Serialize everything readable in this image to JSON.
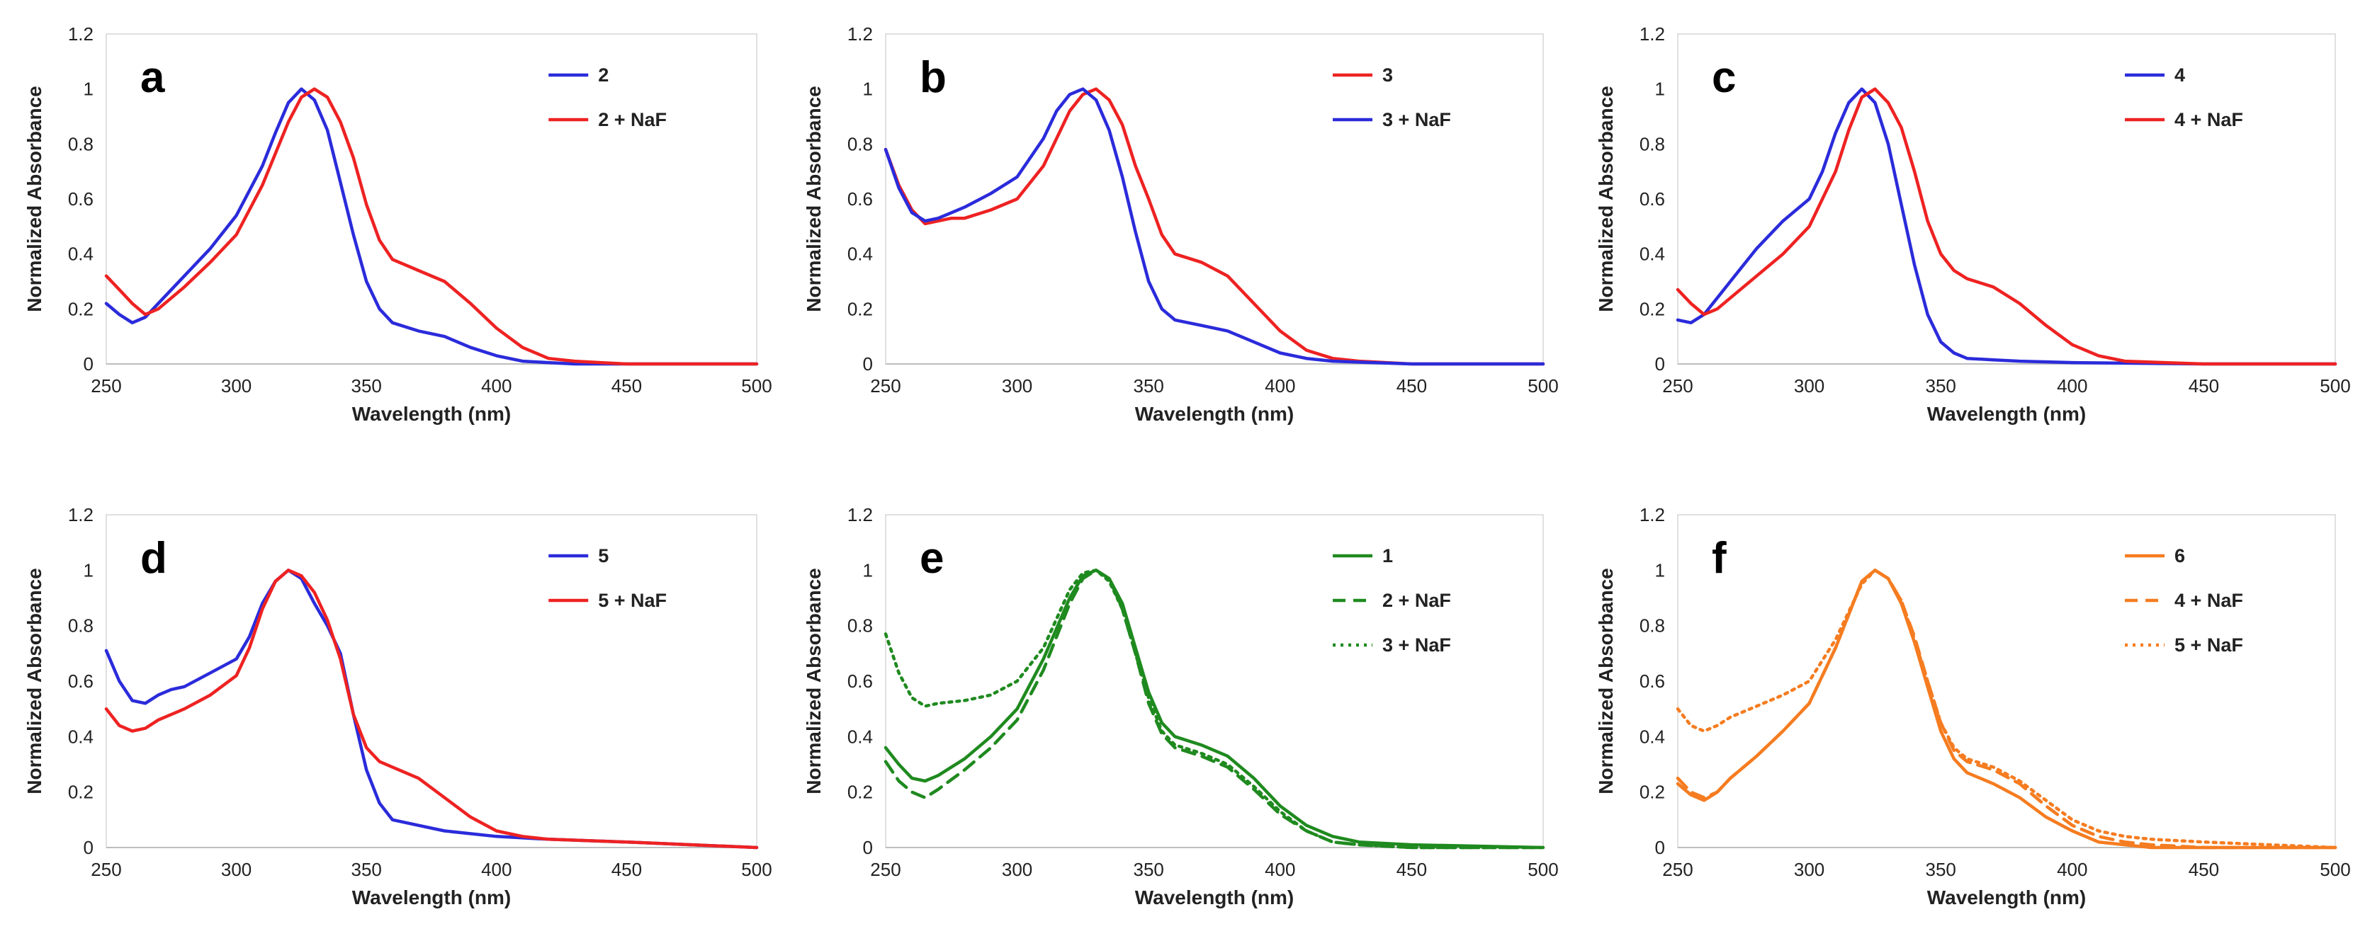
{
  "chart_data": [
    {
      "type": "line",
      "panel_label": "a",
      "xlabel": "Wavelength (nm)",
      "ylabel": "Normalized Absorbance",
      "xlim": [
        250,
        500
      ],
      "ylim": [
        0,
        1.2
      ],
      "xticks": [
        250,
        300,
        350,
        400,
        450,
        500
      ],
      "yticks": [
        0,
        0.2,
        0.4,
        0.6,
        0.8,
        1,
        1.2
      ],
      "grid": false,
      "legend": "top-right",
      "series": [
        {
          "name": "2",
          "color": "#2b2bdb",
          "style": "solid",
          "x": [
            250,
            255,
            260,
            265,
            270,
            280,
            290,
            300,
            310,
            315,
            320,
            325,
            330,
            335,
            340,
            345,
            350,
            355,
            360,
            370,
            380,
            390,
            400,
            410,
            420,
            430,
            450,
            500
          ],
          "y": [
            0.22,
            0.18,
            0.15,
            0.17,
            0.22,
            0.32,
            0.42,
            0.54,
            0.72,
            0.84,
            0.95,
            1.0,
            0.96,
            0.85,
            0.66,
            0.47,
            0.3,
            0.2,
            0.15,
            0.12,
            0.1,
            0.06,
            0.03,
            0.01,
            0.005,
            0,
            0,
            0
          ]
        },
        {
          "name": "2 + NaF",
          "color": "#ee2222",
          "style": "solid",
          "x": [
            250,
            255,
            260,
            265,
            270,
            280,
            290,
            300,
            310,
            320,
            325,
            330,
            335,
            340,
            345,
            350,
            355,
            360,
            370,
            380,
            390,
            400,
            410,
            420,
            430,
            440,
            450,
            500
          ],
          "y": [
            0.32,
            0.27,
            0.22,
            0.18,
            0.2,
            0.28,
            0.37,
            0.47,
            0.65,
            0.88,
            0.97,
            1.0,
            0.97,
            0.88,
            0.75,
            0.58,
            0.45,
            0.38,
            0.34,
            0.3,
            0.22,
            0.13,
            0.06,
            0.02,
            0.01,
            0.005,
            0,
            0
          ]
        }
      ]
    },
    {
      "type": "line",
      "panel_label": "b",
      "xlabel": "Wavelength (nm)",
      "ylabel": "Normalized Absorbance",
      "xlim": [
        250,
        500
      ],
      "ylim": [
        0,
        1.2
      ],
      "xticks": [
        250,
        300,
        350,
        400,
        450,
        500
      ],
      "yticks": [
        0,
        0.2,
        0.4,
        0.6,
        0.8,
        1,
        1.2
      ],
      "grid": false,
      "legend": "top-right",
      "series": [
        {
          "name": "3",
          "color": "#ee2222",
          "style": "solid",
          "x": [
            250,
            255,
            260,
            265,
            270,
            275,
            280,
            290,
            300,
            310,
            320,
            325,
            330,
            335,
            340,
            345,
            350,
            355,
            360,
            370,
            380,
            390,
            400,
            410,
            420,
            430,
            450,
            500
          ],
          "y": [
            0.78,
            0.65,
            0.56,
            0.51,
            0.52,
            0.53,
            0.53,
            0.56,
            0.6,
            0.72,
            0.92,
            0.98,
            1.0,
            0.96,
            0.87,
            0.72,
            0.6,
            0.47,
            0.4,
            0.37,
            0.32,
            0.22,
            0.12,
            0.05,
            0.02,
            0.01,
            0,
            0
          ]
        },
        {
          "name": "3 + NaF",
          "color": "#2b2bdb",
          "style": "solid",
          "x": [
            250,
            255,
            260,
            265,
            270,
            275,
            280,
            290,
            300,
            310,
            315,
            320,
            325,
            330,
            335,
            340,
            345,
            350,
            355,
            360,
            370,
            380,
            390,
            400,
            410,
            420,
            450,
            500
          ],
          "y": [
            0.78,
            0.64,
            0.55,
            0.52,
            0.53,
            0.55,
            0.57,
            0.62,
            0.68,
            0.82,
            0.92,
            0.98,
            1.0,
            0.96,
            0.85,
            0.68,
            0.48,
            0.3,
            0.2,
            0.16,
            0.14,
            0.12,
            0.08,
            0.04,
            0.02,
            0.01,
            0,
            0
          ]
        }
      ]
    },
    {
      "type": "line",
      "panel_label": "c",
      "xlabel": "Wavelength (nm)",
      "ylabel": "Normalized Absorbance",
      "xlim": [
        250,
        500
      ],
      "ylim": [
        0,
        1.2
      ],
      "xticks": [
        250,
        300,
        350,
        400,
        450,
        500
      ],
      "yticks": [
        0,
        0.2,
        0.4,
        0.6,
        0.8,
        1,
        1.2
      ],
      "grid": false,
      "legend": "top-right",
      "series": [
        {
          "name": "4",
          "color": "#2b2bdb",
          "style": "solid",
          "x": [
            250,
            255,
            260,
            265,
            270,
            280,
            290,
            300,
            305,
            310,
            315,
            320,
            325,
            330,
            335,
            340,
            345,
            350,
            355,
            360,
            370,
            380,
            400,
            450,
            500
          ],
          "y": [
            0.16,
            0.15,
            0.18,
            0.24,
            0.3,
            0.42,
            0.52,
            0.6,
            0.7,
            0.84,
            0.95,
            1.0,
            0.95,
            0.8,
            0.58,
            0.36,
            0.18,
            0.08,
            0.04,
            0.02,
            0.015,
            0.01,
            0.005,
            0,
            0
          ]
        },
        {
          "name": "4 + NaF",
          "color": "#ee2222",
          "style": "solid",
          "x": [
            250,
            255,
            260,
            265,
            270,
            280,
            290,
            300,
            310,
            315,
            320,
            325,
            330,
            335,
            340,
            345,
            350,
            355,
            360,
            370,
            380,
            390,
            400,
            410,
            420,
            450,
            500
          ],
          "y": [
            0.27,
            0.22,
            0.18,
            0.2,
            0.24,
            0.32,
            0.4,
            0.5,
            0.7,
            0.85,
            0.97,
            1.0,
            0.95,
            0.86,
            0.7,
            0.52,
            0.4,
            0.34,
            0.31,
            0.28,
            0.22,
            0.14,
            0.07,
            0.03,
            0.01,
            0,
            0
          ]
        }
      ]
    },
    {
      "type": "line",
      "panel_label": "d",
      "xlabel": "Wavelength (nm)",
      "ylabel": "Normalized Absorbance",
      "xlim": [
        250,
        500
      ],
      "ylim": [
        0,
        1.2
      ],
      "xticks": [
        250,
        300,
        350,
        400,
        450,
        500
      ],
      "yticks": [
        0,
        0.2,
        0.4,
        0.6,
        0.8,
        1,
        1.2
      ],
      "grid": false,
      "legend": "top-right",
      "series": [
        {
          "name": "5",
          "color": "#2b2bdb",
          "style": "solid",
          "x": [
            250,
            255,
            260,
            265,
            270,
            275,
            280,
            290,
            300,
            305,
            310,
            315,
            320,
            325,
            330,
            335,
            340,
            345,
            350,
            355,
            360,
            370,
            380,
            400,
            420,
            450,
            500
          ],
          "y": [
            0.71,
            0.6,
            0.53,
            0.52,
            0.55,
            0.57,
            0.58,
            0.63,
            0.68,
            0.76,
            0.88,
            0.96,
            1.0,
            0.97,
            0.88,
            0.8,
            0.7,
            0.48,
            0.28,
            0.16,
            0.1,
            0.08,
            0.06,
            0.04,
            0.03,
            0.02,
            0
          ]
        },
        {
          "name": "5 + NaF",
          "color": "#ee2222",
          "style": "solid",
          "x": [
            250,
            255,
            260,
            265,
            270,
            280,
            290,
            300,
            305,
            310,
            315,
            320,
            325,
            330,
            335,
            340,
            345,
            350,
            355,
            360,
            370,
            380,
            390,
            400,
            410,
            420,
            450,
            500
          ],
          "y": [
            0.5,
            0.44,
            0.42,
            0.43,
            0.46,
            0.5,
            0.55,
            0.62,
            0.72,
            0.86,
            0.96,
            1.0,
            0.98,
            0.92,
            0.82,
            0.68,
            0.48,
            0.36,
            0.31,
            0.29,
            0.25,
            0.18,
            0.11,
            0.06,
            0.04,
            0.03,
            0.02,
            0
          ]
        }
      ]
    },
    {
      "type": "line",
      "panel_label": "e",
      "xlabel": "Wavelength (nm)",
      "ylabel": "Normalized Absorbance",
      "xlim": [
        250,
        500
      ],
      "ylim": [
        0,
        1.2
      ],
      "xticks": [
        250,
        300,
        350,
        400,
        450,
        500
      ],
      "yticks": [
        0,
        0.2,
        0.4,
        0.6,
        0.8,
        1,
        1.2
      ],
      "grid": false,
      "legend": "top-right",
      "series": [
        {
          "name": "1",
          "color": "#1f8a1f",
          "style": "solid",
          "x": [
            250,
            255,
            260,
            265,
            270,
            280,
            290,
            300,
            310,
            320,
            325,
            330,
            335,
            340,
            345,
            350,
            355,
            360,
            370,
            380,
            390,
            400,
            410,
            420,
            430,
            450,
            500
          ],
          "y": [
            0.36,
            0.3,
            0.25,
            0.24,
            0.26,
            0.32,
            0.4,
            0.5,
            0.68,
            0.9,
            0.98,
            1.0,
            0.97,
            0.88,
            0.72,
            0.56,
            0.45,
            0.4,
            0.37,
            0.33,
            0.25,
            0.15,
            0.08,
            0.04,
            0.02,
            0.01,
            0
          ]
        },
        {
          "name": "2 + NaF",
          "color": "#1f8a1f",
          "style": "dashed",
          "x": [
            250,
            255,
            260,
            265,
            270,
            280,
            290,
            300,
            310,
            320,
            325,
            330,
            335,
            340,
            345,
            350,
            355,
            360,
            370,
            380,
            390,
            400,
            410,
            420,
            430,
            450,
            500
          ],
          "y": [
            0.31,
            0.24,
            0.2,
            0.18,
            0.21,
            0.28,
            0.36,
            0.46,
            0.64,
            0.88,
            0.97,
            1.0,
            0.97,
            0.86,
            0.7,
            0.52,
            0.41,
            0.36,
            0.33,
            0.29,
            0.21,
            0.12,
            0.06,
            0.02,
            0.01,
            0,
            0
          ]
        },
        {
          "name": "3 + NaF",
          "color": "#1f8a1f",
          "style": "dotted",
          "x": [
            250,
            255,
            260,
            265,
            270,
            280,
            290,
            300,
            310,
            320,
            325,
            330,
            335,
            340,
            345,
            350,
            355,
            360,
            370,
            380,
            390,
            400,
            410,
            420,
            430,
            450,
            500
          ],
          "y": [
            0.77,
            0.63,
            0.54,
            0.51,
            0.52,
            0.53,
            0.55,
            0.6,
            0.72,
            0.93,
            0.99,
            1.0,
            0.96,
            0.86,
            0.7,
            0.54,
            0.42,
            0.37,
            0.34,
            0.3,
            0.22,
            0.13,
            0.06,
            0.02,
            0.01,
            0,
            0
          ]
        }
      ]
    },
    {
      "type": "line",
      "panel_label": "f",
      "xlabel": "Wavelength (nm)",
      "ylabel": "Normalized Absorbance",
      "xlim": [
        250,
        500
      ],
      "ylim": [
        0,
        1.2
      ],
      "xticks": [
        250,
        300,
        350,
        400,
        450,
        500
      ],
      "yticks": [
        0,
        0.2,
        0.4,
        0.6,
        0.8,
        1,
        1.2
      ],
      "grid": false,
      "legend": "top-right",
      "series": [
        {
          "name": "6",
          "color": "#f57c20",
          "style": "solid",
          "x": [
            250,
            255,
            260,
            265,
            270,
            280,
            290,
            300,
            310,
            320,
            325,
            330,
            335,
            340,
            345,
            350,
            355,
            360,
            370,
            380,
            390,
            400,
            410,
            420,
            430,
            450,
            500
          ],
          "y": [
            0.23,
            0.19,
            0.17,
            0.2,
            0.25,
            0.33,
            0.42,
            0.52,
            0.72,
            0.96,
            1.0,
            0.97,
            0.88,
            0.74,
            0.58,
            0.42,
            0.32,
            0.27,
            0.23,
            0.18,
            0.11,
            0.06,
            0.02,
            0.01,
            0,
            0,
            0
          ]
        },
        {
          "name": "4 + NaF",
          "color": "#f57c20",
          "style": "dashed",
          "x": [
            250,
            255,
            260,
            265,
            270,
            280,
            290,
            300,
            310,
            320,
            325,
            330,
            335,
            340,
            345,
            350,
            355,
            360,
            370,
            380,
            390,
            400,
            410,
            420,
            430,
            450,
            500
          ],
          "y": [
            0.25,
            0.2,
            0.18,
            0.2,
            0.25,
            0.33,
            0.42,
            0.52,
            0.72,
            0.96,
            1.0,
            0.97,
            0.89,
            0.76,
            0.6,
            0.45,
            0.35,
            0.31,
            0.28,
            0.23,
            0.15,
            0.08,
            0.04,
            0.02,
            0.01,
            0,
            0
          ]
        },
        {
          "name": "5 + NaF",
          "color": "#f57c20",
          "style": "dotted",
          "x": [
            250,
            255,
            260,
            265,
            270,
            280,
            290,
            300,
            310,
            320,
            325,
            330,
            335,
            340,
            345,
            350,
            355,
            360,
            370,
            380,
            390,
            400,
            410,
            420,
            430,
            450,
            500
          ],
          "y": [
            0.5,
            0.44,
            0.42,
            0.44,
            0.47,
            0.51,
            0.55,
            0.6,
            0.75,
            0.95,
            1.0,
            0.97,
            0.89,
            0.75,
            0.6,
            0.45,
            0.36,
            0.32,
            0.29,
            0.24,
            0.17,
            0.1,
            0.06,
            0.04,
            0.03,
            0.02,
            0
          ]
        }
      ]
    }
  ]
}
